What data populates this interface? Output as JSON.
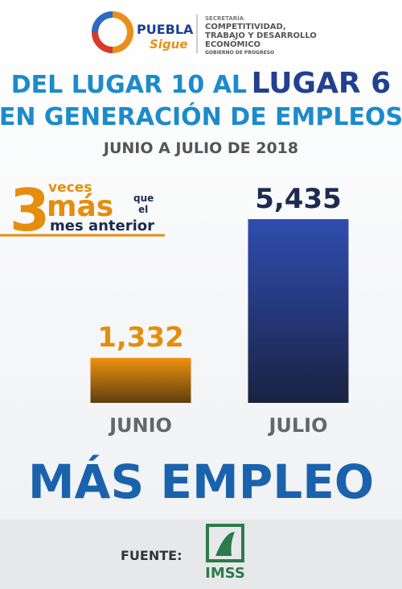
{
  "header": {
    "brand": "PUEBLA",
    "brand_tag": "Sigue",
    "agency_lines": [
      "SECRETARÍA",
      "COMPETITIVIDAD,",
      "TRABAJO Y DESARROLLO",
      "ECONÓMICO"
    ],
    "government": "GOBIERNO DE PROGRESO"
  },
  "chart_data": {
    "type": "bar",
    "title_parts": [
      "DEL LUGAR 10 AL",
      "LUGAR 6"
    ],
    "title_line2": "EN GENERACIÓN DE EMPLEOS",
    "subtitle": "JUNIO A JULIO DE 2018",
    "categories": [
      "JUNIO",
      "JULIO"
    ],
    "values": [
      1332,
      5435
    ],
    "value_labels": [
      "1,332",
      "5,435"
    ],
    "colors": [
      "#e38c0e",
      "#2c48a6"
    ],
    "label_colors": [
      "#e58d0c",
      "#1d2b52"
    ]
  },
  "callout": {
    "number": "3",
    "word1": "veces",
    "word2": "más",
    "word3": "que",
    "word4": "el",
    "tail": "mes anterior"
  },
  "slogan": "MÁS EMPLEO",
  "footer": {
    "source_label": "FUENTE:",
    "source": "IMSS"
  }
}
